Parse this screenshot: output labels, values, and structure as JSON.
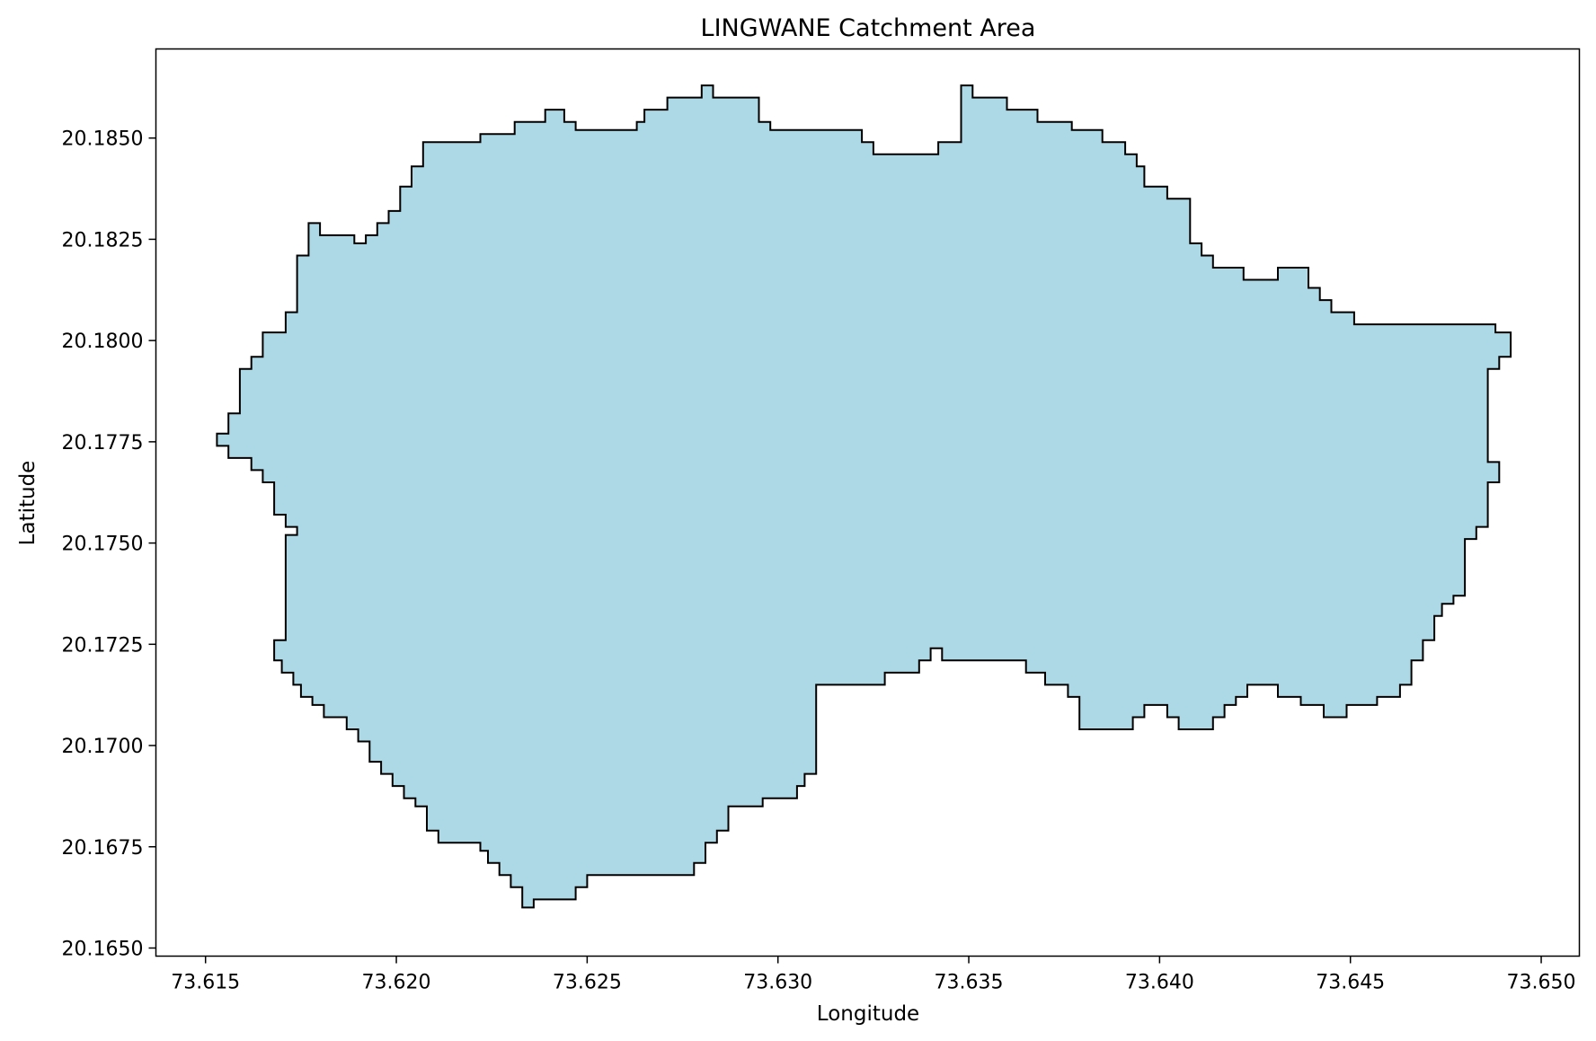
{
  "chart_data": {
    "type": "area",
    "title": "LINGWANE Catchment Area",
    "xlabel": "Longitude",
    "ylabel": "Latitude",
    "xlim": [
      73.6137,
      73.651
    ],
    "ylim": [
      20.1648,
      20.1872
    ],
    "x_ticks": [
      {
        "value": 73.615,
        "label": "73.615"
      },
      {
        "value": 73.62,
        "label": "73.620"
      },
      {
        "value": 73.625,
        "label": "73.625"
      },
      {
        "value": 73.63,
        "label": "73.630"
      },
      {
        "value": 73.635,
        "label": "73.635"
      },
      {
        "value": 73.64,
        "label": "73.640"
      },
      {
        "value": 73.645,
        "label": "73.645"
      },
      {
        "value": 73.65,
        "label": "73.650"
      }
    ],
    "y_ticks": [
      {
        "value": 20.165,
        "label": "20.1650"
      },
      {
        "value": 20.1675,
        "label": "20.1675"
      },
      {
        "value": 20.17,
        "label": "20.1700"
      },
      {
        "value": 20.1725,
        "label": "20.1725"
      },
      {
        "value": 20.175,
        "label": "20.1750"
      },
      {
        "value": 20.1775,
        "label": "20.1775"
      },
      {
        "value": 20.18,
        "label": "20.1800"
      },
      {
        "value": 20.1825,
        "label": "20.1825"
      },
      {
        "value": 20.185,
        "label": "20.1850"
      }
    ],
    "grid": false,
    "fill_color": "#add8e6",
    "edge_color": "#000000",
    "boundary": [
      [
        73.6153,
        20.1774
      ],
      [
        73.6153,
        20.1777
      ],
      [
        73.6156,
        20.1777
      ],
      [
        73.6156,
        20.1782
      ],
      [
        73.6159,
        20.1782
      ],
      [
        73.6159,
        20.1793
      ],
      [
        73.6162,
        20.1793
      ],
      [
        73.6162,
        20.1796
      ],
      [
        73.6165,
        20.1796
      ],
      [
        73.6165,
        20.1802
      ],
      [
        73.6171,
        20.1802
      ],
      [
        73.6171,
        20.1807
      ],
      [
        73.6174,
        20.1807
      ],
      [
        73.6174,
        20.1821
      ],
      [
        73.6177,
        20.1821
      ],
      [
        73.6177,
        20.1829
      ],
      [
        73.618,
        20.1829
      ],
      [
        73.618,
        20.1826
      ],
      [
        73.6189,
        20.1826
      ],
      [
        73.6189,
        20.1824
      ],
      [
        73.6192,
        20.1824
      ],
      [
        73.6192,
        20.1826
      ],
      [
        73.6195,
        20.1826
      ],
      [
        73.6195,
        20.1829
      ],
      [
        73.6198,
        20.1829
      ],
      [
        73.6198,
        20.1832
      ],
      [
        73.6201,
        20.1832
      ],
      [
        73.6201,
        20.1838
      ],
      [
        73.6204,
        20.1838
      ],
      [
        73.6204,
        20.1843
      ],
      [
        73.6207,
        20.1843
      ],
      [
        73.6207,
        20.1849
      ],
      [
        73.6222,
        20.1849
      ],
      [
        73.6222,
        20.1851
      ],
      [
        73.6231,
        20.1851
      ],
      [
        73.6231,
        20.1854
      ],
      [
        73.6239,
        20.1854
      ],
      [
        73.6239,
        20.1857
      ],
      [
        73.6244,
        20.1857
      ],
      [
        73.6244,
        20.1854
      ],
      [
        73.6247,
        20.1854
      ],
      [
        73.6247,
        20.1852
      ],
      [
        73.6263,
        20.1852
      ],
      [
        73.6263,
        20.1854
      ],
      [
        73.6265,
        20.1854
      ],
      [
        73.6265,
        20.1857
      ],
      [
        73.6271,
        20.1857
      ],
      [
        73.6271,
        20.186
      ],
      [
        73.628,
        20.186
      ],
      [
        73.628,
        20.1863
      ],
      [
        73.6283,
        20.1863
      ],
      [
        73.6283,
        20.186
      ],
      [
        73.6295,
        20.186
      ],
      [
        73.6295,
        20.1854
      ],
      [
        73.6298,
        20.1854
      ],
      [
        73.6298,
        20.1852
      ],
      [
        73.6322,
        20.1852
      ],
      [
        73.6322,
        20.1849
      ],
      [
        73.6325,
        20.1849
      ],
      [
        73.6325,
        20.1846
      ],
      [
        73.6342,
        20.1846
      ],
      [
        73.6342,
        20.1849
      ],
      [
        73.6348,
        20.1849
      ],
      [
        73.6348,
        20.1863
      ],
      [
        73.6351,
        20.1863
      ],
      [
        73.6351,
        20.186
      ],
      [
        73.636,
        20.186
      ],
      [
        73.636,
        20.1857
      ],
      [
        73.6368,
        20.1857
      ],
      [
        73.6368,
        20.1854
      ],
      [
        73.6377,
        20.1854
      ],
      [
        73.6377,
        20.1852
      ],
      [
        73.6385,
        20.1852
      ],
      [
        73.6385,
        20.1849
      ],
      [
        73.6391,
        20.1849
      ],
      [
        73.6391,
        20.1846
      ],
      [
        73.6394,
        20.1846
      ],
      [
        73.6394,
        20.1843
      ],
      [
        73.6396,
        20.1843
      ],
      [
        73.6396,
        20.1838
      ],
      [
        73.6402,
        20.1838
      ],
      [
        73.6402,
        20.1835
      ],
      [
        73.6408,
        20.1835
      ],
      [
        73.6408,
        20.1824
      ],
      [
        73.6411,
        20.1824
      ],
      [
        73.6411,
        20.1821
      ],
      [
        73.6414,
        20.1821
      ],
      [
        73.6414,
        20.1818
      ],
      [
        73.6422,
        20.1818
      ],
      [
        73.6422,
        20.1815
      ],
      [
        73.6431,
        20.1815
      ],
      [
        73.6431,
        20.1818
      ],
      [
        73.6439,
        20.1818
      ],
      [
        73.6439,
        20.1813
      ],
      [
        73.6442,
        20.1813
      ],
      [
        73.6442,
        20.181
      ],
      [
        73.6445,
        20.181
      ],
      [
        73.6445,
        20.1807
      ],
      [
        73.6451,
        20.1807
      ],
      [
        73.6451,
        20.1804
      ],
      [
        73.6488,
        20.1804
      ],
      [
        73.6488,
        20.1802
      ],
      [
        73.6492,
        20.1802
      ],
      [
        73.6492,
        20.1796
      ],
      [
        73.6489,
        20.1796
      ],
      [
        73.6489,
        20.1793
      ],
      [
        73.6486,
        20.1793
      ],
      [
        73.6486,
        20.177
      ],
      [
        73.6489,
        20.177
      ],
      [
        73.6489,
        20.1765
      ],
      [
        73.6486,
        20.1765
      ],
      [
        73.6486,
        20.1754
      ],
      [
        73.6483,
        20.1754
      ],
      [
        73.6483,
        20.1751
      ],
      [
        73.648,
        20.1751
      ],
      [
        73.648,
        20.1737
      ],
      [
        73.6477,
        20.1737
      ],
      [
        73.6477,
        20.1735
      ],
      [
        73.6474,
        20.1735
      ],
      [
        73.6474,
        20.1732
      ],
      [
        73.6472,
        20.1732
      ],
      [
        73.6472,
        20.1726
      ],
      [
        73.6469,
        20.1726
      ],
      [
        73.6469,
        20.1721
      ],
      [
        73.6466,
        20.1721
      ],
      [
        73.6466,
        20.1715
      ],
      [
        73.6463,
        20.1715
      ],
      [
        73.6463,
        20.1712
      ],
      [
        73.6457,
        20.1712
      ],
      [
        73.6457,
        20.171
      ],
      [
        73.6449,
        20.171
      ],
      [
        73.6449,
        20.1707
      ],
      [
        73.6443,
        20.1707
      ],
      [
        73.6443,
        20.171
      ],
      [
        73.6437,
        20.171
      ],
      [
        73.6437,
        20.1712
      ],
      [
        73.6431,
        20.1712
      ],
      [
        73.6431,
        20.1715
      ],
      [
        73.6423,
        20.1715
      ],
      [
        73.6423,
        20.1712
      ],
      [
        73.642,
        20.1712
      ],
      [
        73.642,
        20.171
      ],
      [
        73.6417,
        20.171
      ],
      [
        73.6417,
        20.1707
      ],
      [
        73.6414,
        20.1707
      ],
      [
        73.6414,
        20.1704
      ],
      [
        73.6405,
        20.1704
      ],
      [
        73.6405,
        20.1707
      ],
      [
        73.6402,
        20.1707
      ],
      [
        73.6402,
        20.171
      ],
      [
        73.6396,
        20.171
      ],
      [
        73.6396,
        20.1707
      ],
      [
        73.6393,
        20.1707
      ],
      [
        73.6393,
        20.1704
      ],
      [
        73.6379,
        20.1704
      ],
      [
        73.6379,
        20.1712
      ],
      [
        73.6376,
        20.1712
      ],
      [
        73.6376,
        20.1715
      ],
      [
        73.637,
        20.1715
      ],
      [
        73.637,
        20.1718
      ],
      [
        73.6365,
        20.1718
      ],
      [
        73.6365,
        20.1721
      ],
      [
        73.6343,
        20.1721
      ],
      [
        73.6343,
        20.1724
      ],
      [
        73.634,
        20.1724
      ],
      [
        73.634,
        20.1721
      ],
      [
        73.6337,
        20.1721
      ],
      [
        73.6337,
        20.1718
      ],
      [
        73.6328,
        20.1718
      ],
      [
        73.6328,
        20.1715
      ],
      [
        73.631,
        20.1715
      ],
      [
        73.631,
        20.1693
      ],
      [
        73.6307,
        20.1693
      ],
      [
        73.6307,
        20.169
      ],
      [
        73.6305,
        20.169
      ],
      [
        73.6305,
        20.1687
      ],
      [
        73.6296,
        20.1687
      ],
      [
        73.6296,
        20.1685
      ],
      [
        73.6287,
        20.1685
      ],
      [
        73.6287,
        20.1679
      ],
      [
        73.6284,
        20.1679
      ],
      [
        73.6284,
        20.1676
      ],
      [
        73.6281,
        20.1676
      ],
      [
        73.6281,
        20.1671
      ],
      [
        73.6278,
        20.1671
      ],
      [
        73.6278,
        20.1668
      ],
      [
        73.625,
        20.1668
      ],
      [
        73.625,
        20.1665
      ],
      [
        73.6247,
        20.1665
      ],
      [
        73.6247,
        20.1662
      ],
      [
        73.6236,
        20.1662
      ],
      [
        73.6236,
        20.166
      ],
      [
        73.6233,
        20.166
      ],
      [
        73.6233,
        20.1665
      ],
      [
        73.623,
        20.1665
      ],
      [
        73.623,
        20.1668
      ],
      [
        73.6227,
        20.1668
      ],
      [
        73.6227,
        20.1671
      ],
      [
        73.6224,
        20.1671
      ],
      [
        73.6224,
        20.1674
      ],
      [
        73.6222,
        20.1674
      ],
      [
        73.6222,
        20.1676
      ],
      [
        73.6211,
        20.1676
      ],
      [
        73.6211,
        20.1679
      ],
      [
        73.6208,
        20.1679
      ],
      [
        73.6208,
        20.1685
      ],
      [
        73.6205,
        20.1685
      ],
      [
        73.6205,
        20.1687
      ],
      [
        73.6202,
        20.1687
      ],
      [
        73.6202,
        20.169
      ],
      [
        73.6199,
        20.169
      ],
      [
        73.6199,
        20.1693
      ],
      [
        73.6196,
        20.1693
      ],
      [
        73.6196,
        20.1696
      ],
      [
        73.6193,
        20.1696
      ],
      [
        73.6193,
        20.1701
      ],
      [
        73.619,
        20.1701
      ],
      [
        73.619,
        20.1704
      ],
      [
        73.6187,
        20.1704
      ],
      [
        73.6187,
        20.1707
      ],
      [
        73.6181,
        20.1707
      ],
      [
        73.6181,
        20.171
      ],
      [
        73.6178,
        20.171
      ],
      [
        73.6178,
        20.1712
      ],
      [
        73.6175,
        20.1712
      ],
      [
        73.6175,
        20.1715
      ],
      [
        73.6173,
        20.1715
      ],
      [
        73.6173,
        20.1718
      ],
      [
        73.617,
        20.1718
      ],
      [
        73.617,
        20.1721
      ],
      [
        73.6168,
        20.1721
      ],
      [
        73.6168,
        20.1726
      ],
      [
        73.6171,
        20.1726
      ],
      [
        73.6171,
        20.1752
      ],
      [
        73.6174,
        20.1752
      ],
      [
        73.6174,
        20.1754
      ],
      [
        73.6171,
        20.1754
      ],
      [
        73.6171,
        20.1757
      ],
      [
        73.6168,
        20.1757
      ],
      [
        73.6168,
        20.1765
      ],
      [
        73.6165,
        20.1765
      ],
      [
        73.6165,
        20.1768
      ],
      [
        73.6162,
        20.1768
      ],
      [
        73.6162,
        20.1771
      ],
      [
        73.6156,
        20.1771
      ],
      [
        73.6156,
        20.1774
      ]
    ]
  }
}
